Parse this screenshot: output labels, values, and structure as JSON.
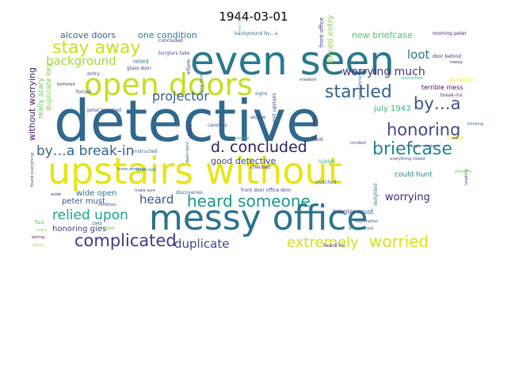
{
  "title": "1944-03-01",
  "cloud": {
    "words": [
      {
        "id": "upstairs-without",
        "text": "upstairs without",
        "color": "#e7e419"
      },
      {
        "id": "detective",
        "text": "detective",
        "color": "#31688e"
      },
      {
        "id": "messy-office",
        "text": "messy office",
        "color": "#2c728e"
      },
      {
        "id": "even-seen",
        "text": "even seen",
        "color": "#2a788e"
      },
      {
        "id": "open-doors",
        "text": "open doors",
        "color": "#c2df23"
      },
      {
        "id": "stay-away",
        "text": "stay away",
        "color": "#c8e020"
      },
      {
        "id": "d-concluded",
        "text": "d. concluded",
        "color": "#2d1e64"
      },
      {
        "id": "by-a-break-in",
        "text": "by…a break-in",
        "color": "#33638d"
      },
      {
        "id": "heard-someone",
        "text": "heard someone",
        "color": "#1f968b"
      },
      {
        "id": "startled",
        "text": "startled",
        "color": "#35608d"
      },
      {
        "id": "briefcase",
        "text": "briefcase",
        "color": "#26828e"
      },
      {
        "id": "honoring",
        "text": "honoring",
        "color": "#3e4989"
      },
      {
        "id": "by-a",
        "text": "by…a",
        "color": "#3b528b"
      },
      {
        "id": "worrying-much",
        "text": "worrying much",
        "color": "#46327e"
      },
      {
        "id": "background",
        "text": "background",
        "color": "#a2da37"
      },
      {
        "id": "relied-upon",
        "text": "relied upon",
        "color": "#1fa187"
      },
      {
        "id": "complicated",
        "text": "complicated",
        "color": "#453781"
      },
      {
        "id": "extremely",
        "text": "extremely",
        "color": "#d0e11c"
      },
      {
        "id": "worried",
        "text": "worried",
        "color": "#d8e219"
      },
      {
        "id": "duplicate",
        "text": "duplicate",
        "color": "#3e4989"
      },
      {
        "id": "heard",
        "text": "heard",
        "color": "#3b528b"
      },
      {
        "id": "worrying",
        "text": "worrying",
        "color": "#482475"
      },
      {
        "id": "projector",
        "text": "projector",
        "color": "#365c8d"
      },
      {
        "id": "loot",
        "text": "loot",
        "color": "#2a768e"
      },
      {
        "id": "good-detective",
        "text": "good detective",
        "color": "#404688"
      },
      {
        "id": "alcove-doors",
        "text": "alcove doors",
        "color": "#31688e"
      },
      {
        "id": "one-condition",
        "text": "one condition",
        "color": "#287c8e"
      },
      {
        "id": "new-briefcase",
        "text": "new briefcase",
        "color": "#4ac16d"
      },
      {
        "id": "peter-must",
        "text": "peter must",
        "color": "#3b528b"
      },
      {
        "id": "wide-open",
        "text": "wide open",
        "color": "#2c728e"
      },
      {
        "id": "honoring-gies",
        "text": "honoring gies",
        "color": "#443983"
      },
      {
        "id": "july-1943",
        "text": "july 1943",
        "color": "#35b779"
      },
      {
        "id": "could-hunt",
        "text": "could hunt",
        "color": "#26828e"
      },
      {
        "id": "burglar-must",
        "text": "burglar must",
        "color": "#3e4989"
      },
      {
        "id": "without-worrying",
        "text": "without worrying",
        "color": "#48186a"
      },
      {
        "id": "really-scary",
        "text": "really scary",
        "color": "#5ec962"
      },
      {
        "id": "duplicate-key",
        "text": "duplicate key",
        "color": "#7ad151"
      },
      {
        "id": "forced-entry",
        "text": "forced entry",
        "color": "#86d549"
      },
      {
        "id": "terrible-mess",
        "text": "terrible mess",
        "color": "#471063"
      },
      {
        "id": "burglary",
        "text": "burglary",
        "color": "#fde725"
      },
      {
        "id": "relied",
        "text": "relied",
        "color": "#287c8e"
      },
      {
        "id": "concluded",
        "text": "concluded",
        "color": "#46327e"
      },
      {
        "id": "background-by-a",
        "text": "background by…a",
        "color": "#2c728e"
      },
      {
        "id": "burglars-take",
        "text": "burglars take",
        "color": "#3b528b"
      },
      {
        "id": "peter-knocked",
        "text": "peter knocked",
        "color": "#3e4989"
      },
      {
        "id": "front-office",
        "text": "front office",
        "color": "#443983"
      },
      {
        "id": "morning-peter",
        "text": "morning peter",
        "color": "#482475"
      },
      {
        "id": "door-behind",
        "text": "door behind",
        "color": "#472f7d"
      },
      {
        "id": "entry",
        "text": "entry",
        "color": "#3b528b"
      },
      {
        "id": "forced",
        "text": "forced",
        "color": "#3e4989"
      },
      {
        "id": "bothered",
        "text": "bothered",
        "color": "#46327e"
      },
      {
        "id": "instructed",
        "text": "instructed",
        "color": "#31688e"
      },
      {
        "id": "careless",
        "text": "careless",
        "color": "#3b528b"
      },
      {
        "id": "alcove",
        "text": "alcove",
        "color": "#3e4989"
      },
      {
        "id": "hunt",
        "text": "hunt",
        "color": "#482475"
      },
      {
        "id": "checked",
        "text": "checked",
        "color": "#46327e"
      },
      {
        "id": "hidden",
        "text": "hidden",
        "color": "#35b779"
      },
      {
        "id": "switched",
        "text": "switched",
        "color": "#31688e"
      },
      {
        "id": "delighted",
        "text": "delighted",
        "color": "#287c8e"
      },
      {
        "id": "everything-closed",
        "text": "everything closed",
        "color": "#404688"
      },
      {
        "id": "discoveries",
        "text": "discoveries",
        "color": "#31688e"
      },
      {
        "id": "front-door-office-door",
        "text": "front door office door",
        "color": "#3e4989"
      },
      {
        "id": "flashed",
        "text": "flashed",
        "color": "#5ec962"
      },
      {
        "id": "condition",
        "text": "condition",
        "color": "#3b528b"
      },
      {
        "id": "heard-mr",
        "text": "heard mr.",
        "color": "#46327e"
      },
      {
        "id": "disappeared",
        "text": "disappeared",
        "color": "#31688e"
      },
      {
        "id": "seven-thirty-mr",
        "text": "seven-thirty mr.",
        "color": "#3e4989"
      },
      {
        "id": "astonished",
        "text": "astonished",
        "color": "#35b779"
      },
      {
        "id": "break-ins",
        "text": "break-ins",
        "color": "#443983"
      },
      {
        "id": "messy",
        "text": "messy",
        "color": "#482475"
      },
      {
        "id": "signs",
        "text": "signs",
        "color": "#31688e"
      },
      {
        "id": "sneaked",
        "text": "sneaked",
        "color": "#3b528b"
      },
      {
        "id": "affairs",
        "text": "affairs",
        "color": "#46327e"
      },
      {
        "id": "glass-door",
        "text": "glass door",
        "color": "#3e4989"
      },
      {
        "id": "fled",
        "text": "fled",
        "color": "#5ec962"
      },
      {
        "id": "scary",
        "text": "scary",
        "color": "#a2da37"
      },
      {
        "id": "found-everything",
        "text": "found everything",
        "color": "#3e4989"
      },
      {
        "id": "heading",
        "text": "heading",
        "color": "#3b528b"
      },
      {
        "id": "pleasure",
        "text": "pleasure",
        "color": "#7ad151"
      },
      {
        "id": "went-upstairs",
        "text": "went upstairs",
        "color": "#3e4989"
      },
      {
        "id": "dawn-went",
        "text": "dawn went",
        "color": "#31688e"
      },
      {
        "id": "aside",
        "text": "aside",
        "color": "#443983"
      },
      {
        "id": "explanation",
        "text": "explanation",
        "color": "#3b528b"
      },
      {
        "id": "inform",
        "text": "inform",
        "color": "#46327e"
      },
      {
        "id": "came-home",
        "text": "came home",
        "color": "#31688e"
      },
      {
        "id": "1943",
        "text": "1943",
        "color": "#3e4989"
      },
      {
        "id": "dawn-told",
        "text": "dawn told",
        "color": "#287c8e"
      },
      {
        "id": "make-sure",
        "text": "make sure",
        "color": "#3b528b"
      },
      {
        "id": "boring",
        "text": "boring",
        "color": "#482475"
      },
      {
        "id": "worried-small",
        "text": "worried",
        "color": "#35b779"
      },
      {
        "id": "burglar",
        "text": "burglar",
        "color": "#fde725"
      },
      {
        "id": "knew-whether",
        "text": "knew whether",
        "color": "#31688e"
      },
      {
        "id": "incident",
        "text": "incident",
        "color": "#3e4989"
      },
      {
        "id": "dealt",
        "text": "dealt",
        "color": "#46327e"
      },
      {
        "id": "burly",
        "text": "burly",
        "color": "#a2da37"
      },
      {
        "id": "huge-numbers",
        "text": "huge numbers",
        "color": "#3b528b"
      },
      {
        "id": "thinking",
        "text": "thinking",
        "color": "#31688e"
      },
      {
        "id": "worried-mr",
        "text": "worried mr.",
        "color": "#7ad151"
      }
    ]
  }
}
